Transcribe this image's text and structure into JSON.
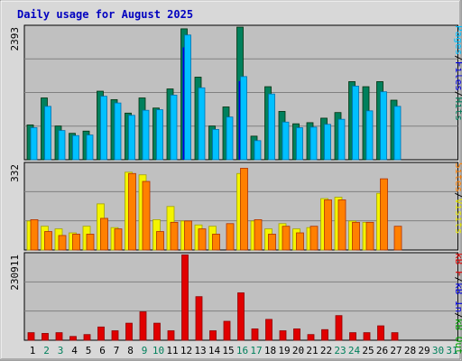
{
  "title": "Daily usage for August 2025",
  "colors": {
    "hits": "#00805c",
    "files": "#0000e6",
    "pages": "#00c0ff",
    "visits": "#f4f400",
    "sites": "#ff8000",
    "kbin": "#0000e6",
    "kbout": "#00a000",
    "kbf": "#e00000",
    "panel": "#c0c0c0",
    "background": "#d8d8d8",
    "weekend": "#00805c",
    "weekday": "#000000"
  },
  "axis_labels": {
    "top_max": "2393",
    "mid_max": "332",
    "bottom_max": "230911",
    "top_right": [
      "Pages",
      "/",
      "Files",
      "/",
      "Hits"
    ],
    "mid_right": [
      "Sites",
      "/",
      "Visits"
    ],
    "bottom_right": [
      "kB F",
      "/",
      "kB In",
      "/",
      "kB Out"
    ]
  },
  "chart_data": {
    "type": "bar",
    "title": "Daily usage for August 2025",
    "categories": [
      "1",
      "2",
      "3",
      "4",
      "5",
      "6",
      "7",
      "8",
      "9",
      "10",
      "11",
      "12",
      "13",
      "14",
      "15",
      "16",
      "17",
      "18",
      "19",
      "20",
      "21",
      "22",
      "23",
      "24",
      "25",
      "26",
      "27",
      "28",
      "29",
      "30",
      "31"
    ],
    "weekend_days": [
      2,
      3,
      9,
      10,
      16,
      17,
      23,
      24,
      30,
      31
    ],
    "panels": [
      {
        "name": "top",
        "ylim": [
          0,
          2393
        ],
        "series": [
          {
            "name": "Hits",
            "values": [
              620,
              1100,
              600,
              470,
              510,
              1220,
              1070,
              830,
              1100,
              920,
              1260,
              2330,
              1470,
              600,
              940,
              2360,
              420,
              1300,
              860,
              640,
              660,
              740,
              840,
              1390,
              1300,
              1390,
              1060,
              0,
              0,
              0,
              0
            ]
          },
          {
            "name": "Files",
            "values": [
              0,
              0,
              0,
              0,
              0,
              0,
              0,
              0,
              0,
              0,
              0,
              2000,
              0,
              0,
              0,
              1400,
              0,
              0,
              0,
              0,
              0,
              0,
              0,
              0,
              0,
              0,
              0,
              0,
              0,
              0,
              0
            ]
          },
          {
            "name": "Pages",
            "values": [
              570,
              950,
              520,
              430,
              440,
              1130,
              1010,
              790,
              880,
              890,
              1150,
              2220,
              1280,
              540,
              760,
              1480,
              340,
              1170,
              670,
              570,
              580,
              630,
              720,
              1310,
              870,
              1210,
              950,
              0,
              0,
              0,
              0
            ]
          }
        ]
      },
      {
        "name": "middle",
        "ylim": [
          0,
          332
        ],
        "series": [
          {
            "name": "Visits",
            "values": [
              110,
              90,
              80,
              65,
              90,
              175,
              85,
              295,
              285,
              115,
              165,
              110,
              95,
              90,
              0,
              290,
              110,
              80,
              100,
              80,
              85,
              195,
              200,
              110,
              105,
              215,
              0,
              0,
              0,
              0,
              0
            ]
          },
          {
            "name": "Sites",
            "values": [
              115,
              70,
              55,
              60,
              60,
              120,
              80,
              290,
              260,
              70,
              105,
              110,
              80,
              60,
              100,
              310,
              115,
              60,
              90,
              65,
              90,
              190,
              190,
              105,
              105,
              270,
              90,
              0,
              0,
              0,
              0
            ]
          }
        ]
      },
      {
        "name": "bottom",
        "ylim": [
          0,
          230911
        ],
        "series": [
          {
            "name": "kB F",
            "values": [
              20000,
              18000,
              20000,
              10000,
              15000,
              35000,
              25000,
              45000,
              75000,
              45000,
              25000,
              225000,
              115000,
              25000,
              50000,
              125000,
              30000,
              55000,
              25000,
              30000,
              15000,
              28000,
              65000,
              20000,
              20000,
              38000,
              20000,
              0,
              0,
              0,
              0
            ]
          },
          {
            "name": "kB In",
            "values": [
              0,
              0,
              0,
              0,
              0,
              0,
              0,
              0,
              0,
              0,
              0,
              0,
              0,
              0,
              0,
              0,
              0,
              0,
              0,
              0,
              0,
              0,
              0,
              0,
              0,
              0,
              0,
              0,
              0,
              0,
              0
            ]
          },
          {
            "name": "kB Out",
            "values": [
              0,
              0,
              0,
              0,
              0,
              0,
              0,
              0,
              0,
              0,
              0,
              0,
              0,
              0,
              0,
              0,
              0,
              0,
              0,
              0,
              0,
              0,
              0,
              0,
              0,
              0,
              0,
              0,
              0,
              0,
              0
            ]
          }
        ]
      }
    ]
  }
}
